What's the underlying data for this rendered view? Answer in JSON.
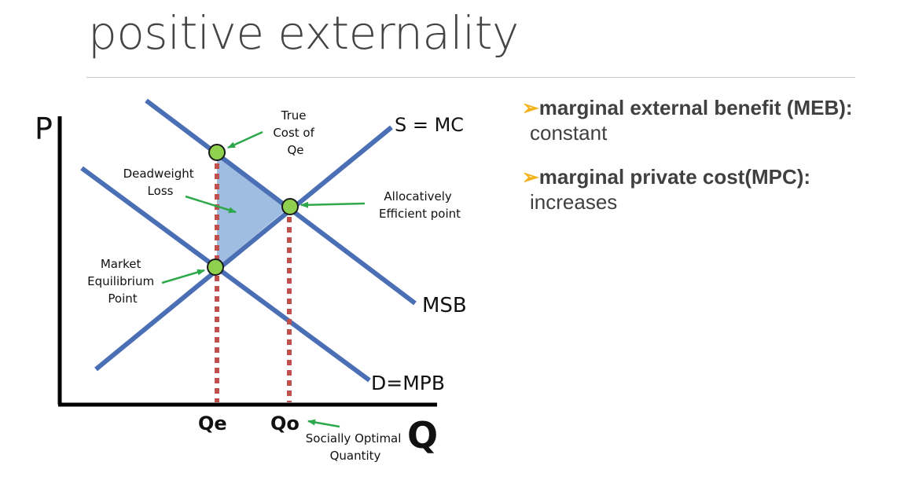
{
  "slide": {
    "title": "positive externality"
  },
  "diagram": {
    "axis_p": "P",
    "axis_q": "Q",
    "label_s": "S = MC",
    "label_msb": "MSB",
    "label_d": "D=MPB",
    "label_qe": "Qe",
    "label_qo": "Qo",
    "annotation_true_cost": [
      "True",
      "Cost of",
      "Qe"
    ],
    "annotation_deadweight": [
      "Deadweight",
      "Loss"
    ],
    "annotation_allocative": [
      "Allocatively",
      "Efficient point"
    ],
    "annotation_market": [
      "Market",
      "Equilibrium",
      "Point"
    ],
    "annotation_social": [
      "Socially Optimal",
      "Quantity"
    ],
    "colors": {
      "curve": "#4a6fb5",
      "shade": "#8eb0dc",
      "point_fill": "#8fd14f",
      "dotted": "#c0504d",
      "arrow": "#2da84a",
      "axis": "#000000"
    }
  },
  "bullets": [
    {
      "marker": "➢",
      "heading": "marginal external benefit (MEB):",
      "detail": "constant"
    },
    {
      "marker": "➢",
      "heading": "marginal private cost(MPC):",
      "detail": "increases"
    }
  ]
}
